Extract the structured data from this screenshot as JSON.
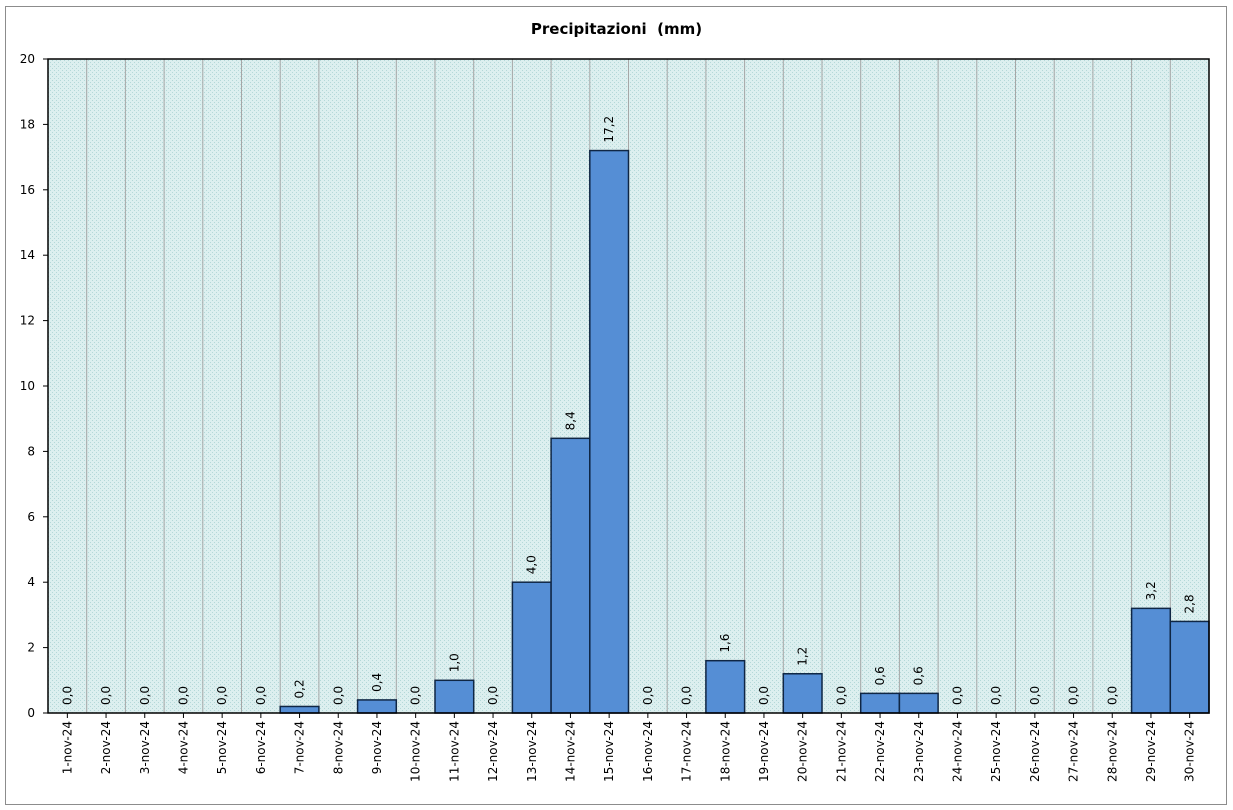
{
  "chart_data": {
    "type": "bar",
    "title": "Precipitazioni  (mm)",
    "xlabel": "",
    "ylabel": "",
    "ylim": [
      0,
      20
    ],
    "yticks": [
      0,
      2,
      4,
      6,
      8,
      10,
      12,
      14,
      16,
      18,
      20
    ],
    "categories": [
      "1-nov-24",
      "2-nov-24",
      "3-nov-24",
      "4-nov-24",
      "5-nov-24",
      "6-nov-24",
      "7-nov-24",
      "8-nov-24",
      "9-nov-24",
      "10-nov-24",
      "11-nov-24",
      "12-nov-24",
      "13-nov-24",
      "14-nov-24",
      "15-nov-24",
      "16-nov-24",
      "17-nov-24",
      "18-nov-24",
      "19-nov-24",
      "20-nov-24",
      "21-nov-24",
      "22-nov-24",
      "23-nov-24",
      "24-nov-24",
      "25-nov-24",
      "26-nov-24",
      "27-nov-24",
      "28-nov-24",
      "29-nov-24",
      "30-nov-24"
    ],
    "values": [
      0.0,
      0.0,
      0.0,
      0.0,
      0.0,
      0.0,
      0.2,
      0.0,
      0.4,
      0.0,
      1.0,
      0.0,
      4.0,
      8.4,
      17.2,
      0.0,
      0.0,
      1.6,
      0.0,
      1.2,
      0.0,
      0.6,
      0.6,
      0.0,
      0.0,
      0.0,
      0.0,
      0.0,
      3.2,
      2.8
    ],
    "data_labels": [
      "0,0",
      "0,0",
      "0,0",
      "0,0",
      "0,0",
      "0,0",
      "0,2",
      "0,0",
      "0,4",
      "0,0",
      "1,0",
      "0,0",
      "4,0",
      "8,4",
      "17,2",
      "0,0",
      "0,0",
      "1,6",
      "0,0",
      "1,2",
      "0,0",
      "0,6",
      "0,6",
      "0,0",
      "0,0",
      "0,0",
      "0,0",
      "0,0",
      "3,2",
      "2,8"
    ],
    "grid": "vertical",
    "legend": "none",
    "colors": {
      "bar_fill": "#558ed5",
      "bar_stroke": "#0f2644",
      "plot_bg": "#dcefef",
      "gridline": "#a6a6a6"
    }
  }
}
